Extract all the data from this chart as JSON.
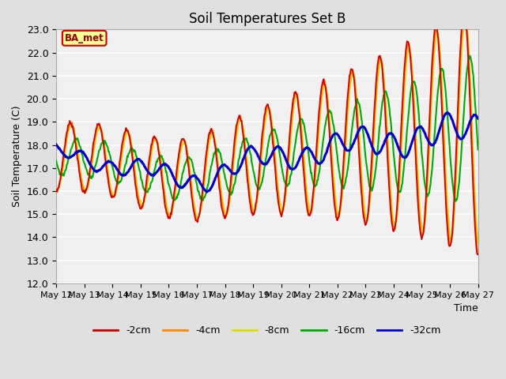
{
  "title": "Soil Temperatures Set B",
  "xlabel": "Time",
  "ylabel": "Soil Temperature (C)",
  "ylim": [
    12.0,
    23.0
  ],
  "yticks": [
    12.0,
    13.0,
    14.0,
    15.0,
    16.0,
    17.0,
    18.0,
    19.0,
    20.0,
    21.0,
    22.0,
    23.0
  ],
  "xlim_start": 12,
  "xlim_end": 27,
  "xtick_days": [
    12,
    13,
    14,
    15,
    16,
    17,
    18,
    19,
    20,
    21,
    22,
    23,
    24,
    25,
    26,
    27
  ],
  "xtick_labels": [
    "May 12",
    "May 13",
    "May 14",
    "May 15",
    "May 16",
    "May 17",
    "May 18",
    "May 19",
    "May 20",
    "May 21",
    "May 22",
    "May 23",
    "May 24",
    "May 25",
    "May 26",
    "May 27"
  ],
  "legend_labels": [
    "-2cm",
    "-4cm",
    "-8cm",
    "-16cm",
    "-32cm"
  ],
  "legend_colors": [
    "#cc0000",
    "#ff8800",
    "#dddd00",
    "#00aa00",
    "#0000cc"
  ],
  "background_color": "#e0e0e0",
  "plot_bg_color": "#f0f0f0",
  "annotation_text": "BA_met",
  "annotation_bg": "#ffff99",
  "annotation_border": "#cc0000"
}
